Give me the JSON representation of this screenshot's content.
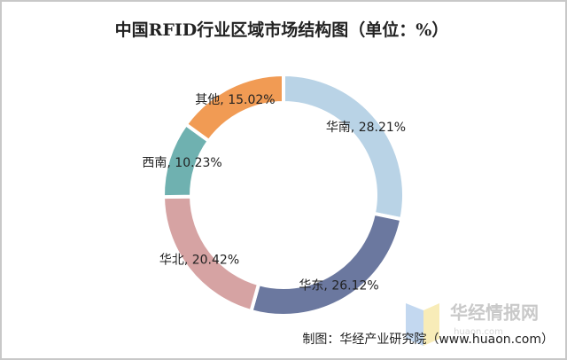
{
  "chart_data": {
    "type": "pie",
    "title": "中国RFID行业区域市场结构图（单位：%）",
    "values": [
      28.21,
      26.12,
      20.42,
      10.23,
      15.02
    ],
    "value_labels": [
      "华南, 28.21%",
      "华东, 26.12%",
      "华北, 20.42%",
      "西南, 10.23%",
      "其他, 15.02%"
    ],
    "colors": [
      "#b9d3e6",
      "#6b789f",
      "#d6a3a3",
      "#6fb1b0",
      "#f19b54"
    ],
    "donut": true,
    "source": "制图：华经产业研究院（www.huaon.com）",
    "watermark": "华经情报网",
    "watermark_sub": "huaon.com"
  }
}
